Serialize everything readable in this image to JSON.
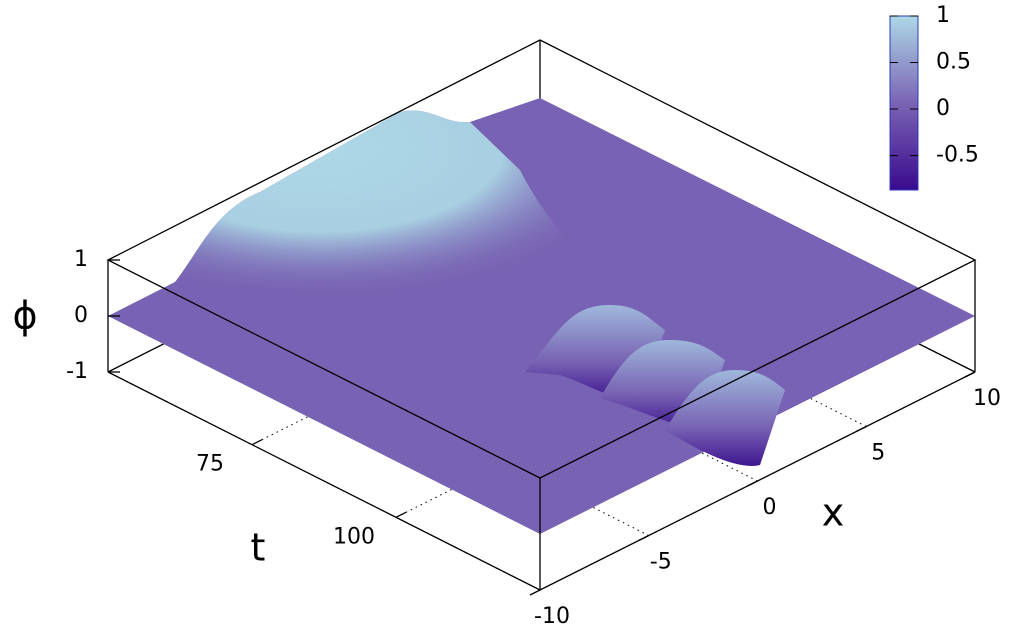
{
  "chart_data": {
    "type": "surface",
    "xlabel": "x",
    "ylabel": "t",
    "zlabel": "ϕ",
    "xlim": [
      -10,
      10
    ],
    "xticks": [
      -10,
      -5,
      0,
      5,
      10
    ],
    "ylim": [
      50,
      125
    ],
    "yticks": [
      75,
      100
    ],
    "zlim": [
      -1,
      1
    ],
    "zticks": [
      -1,
      0,
      1
    ],
    "cblim": [
      -0.87,
      1
    ],
    "cbticks": [
      -0.5,
      0,
      0.5,
      1
    ],
    "colormap": [
      "#3a0a8e",
      "#7a64b4",
      "#add8e6"
    ],
    "grid": true
  }
}
